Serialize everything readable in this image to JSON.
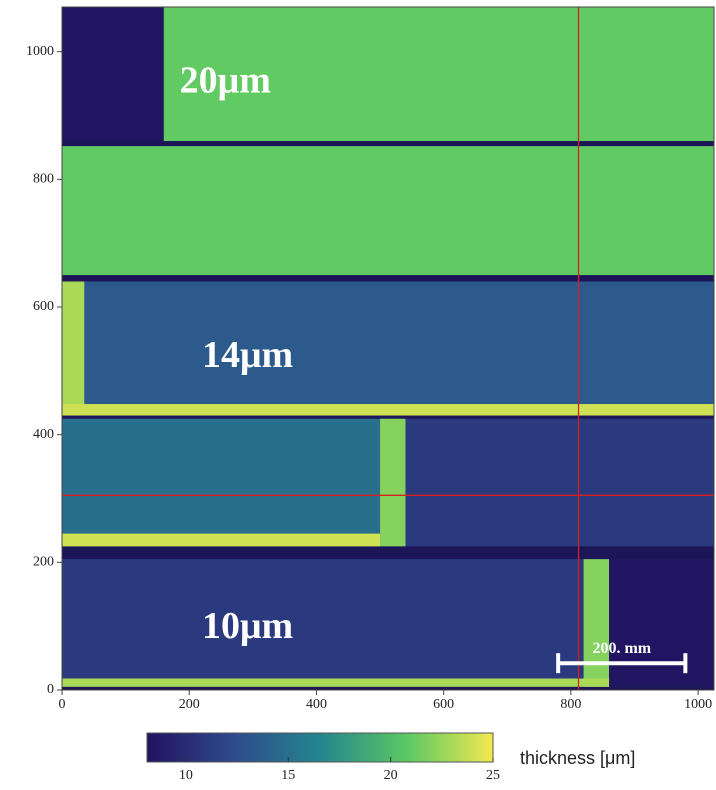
{
  "chart_data": {
    "type": "image",
    "xlim": [
      0,
      1025
    ],
    "ylim": [
      0,
      1070
    ],
    "xticks": [
      0,
      200,
      400,
      600,
      800,
      1000
    ],
    "yticks": [
      0,
      200,
      400,
      600,
      800,
      1000
    ],
    "regions": [
      {
        "x": [
          0,
          160
        ],
        "y": [
          860,
          1070
        ],
        "value": 8.2
      },
      {
        "x": [
          160,
          1025
        ],
        "y": [
          860,
          1070
        ],
        "value": 21
      },
      {
        "x": [
          0,
          1025
        ],
        "y": [
          650,
          852
        ],
        "value": 21
      },
      {
        "x": [
          0,
          1025
        ],
        "y": [
          430,
          640
        ],
        "value": 13.5
      },
      {
        "x": [
          0,
          35
        ],
        "y": [
          430,
          640
        ],
        "value": 23
      },
      {
        "x": [
          0,
          1025
        ],
        "y": [
          430,
          448
        ],
        "value": 24
      },
      {
        "x": [
          0,
          500
        ],
        "y": [
          225,
          425
        ],
        "value": 15
      },
      {
        "x": [
          500,
          540
        ],
        "y": [
          225,
          425
        ],
        "value": 22
      },
      {
        "x": [
          540,
          1025
        ],
        "y": [
          225,
          425
        ],
        "value": 11
      },
      {
        "x": [
          0,
          500
        ],
        "y": [
          225,
          245
        ],
        "value": 24
      },
      {
        "x": [
          0,
          1025
        ],
        "y": [
          5,
          205
        ],
        "value": 11
      },
      {
        "x": [
          820,
          860
        ],
        "y": [
          5,
          205
        ],
        "value": 22
      },
      {
        "x": [
          860,
          1025
        ],
        "y": [
          5,
          205
        ],
        "value": 8.2
      },
      {
        "x": [
          0,
          860
        ],
        "y": [
          5,
          18
        ],
        "value": 23
      }
    ],
    "crosshair": {
      "x": 812,
      "y": 305,
      "color": "#d62020"
    },
    "annotations": [
      {
        "text": "20μm",
        "x": 185,
        "y": 950
      },
      {
        "text": "14μm",
        "x": 220,
        "y": 520
      },
      {
        "text": "10μm",
        "x": 220,
        "y": 95
      }
    ],
    "scale_bar": {
      "label": "200. mm",
      "length": 200,
      "x": 780,
      "y": 42
    },
    "colorbar": {
      "label": "thickness [μm]",
      "clim": [
        8.1,
        25
      ],
      "ticks": [
        10,
        15,
        20,
        25
      ],
      "colormap": [
        "#21135f",
        "#2f4a8c",
        "#23858e",
        "#5ac864",
        "#f2e94e"
      ]
    }
  }
}
